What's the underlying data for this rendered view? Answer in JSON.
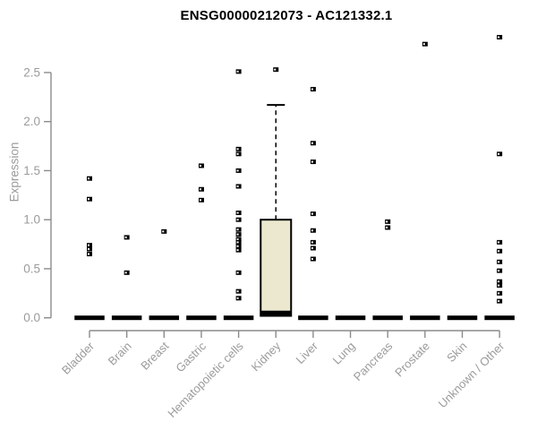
{
  "chart_data": {
    "type": "boxplot",
    "title": "ENSG00000212073 - AC121332.1",
    "xlabel": "",
    "ylabel": "Expression",
    "ylim": [
      0,
      2.9
    ],
    "grid": false,
    "legend": "none",
    "yticks": {
      "values": [
        0,
        0.5,
        1.0,
        1.5,
        2.0,
        2.5
      ],
      "labels": [
        "0.0",
        "0.5",
        "1.0",
        "1.5",
        "2.0",
        "2.5"
      ]
    },
    "categories": [
      "Bladder",
      "Brain",
      "Breast",
      "Gastric",
      "Hematopoietic cells",
      "Kidney",
      "Liver",
      "Lung",
      "Pancreas",
      "Prostate",
      "Skin",
      "Unknown / Other"
    ],
    "groups": [
      {
        "label": "Bladder",
        "median": 0,
        "points": [
          1.42,
          1.21,
          0.74,
          0.7,
          0.65
        ]
      },
      {
        "label": "Brain",
        "median": 0,
        "points": [
          0.82,
          0.46
        ]
      },
      {
        "label": "Breast",
        "median": 0,
        "points": [
          0.88
        ]
      },
      {
        "label": "Gastric",
        "median": 0,
        "points": [
          1.55,
          1.31,
          1.2
        ]
      },
      {
        "label": "Hematopoietic cells",
        "median": 0,
        "points": [
          2.51,
          1.72,
          1.67,
          1.5,
          1.34,
          1.07,
          1.0,
          0.9,
          0.85,
          0.8,
          0.77,
          0.73,
          0.69,
          0.46,
          0.27,
          0.2
        ]
      },
      {
        "label": "Kidney",
        "median": 0.05,
        "box": {
          "q1": 0.02,
          "q3": 1.0,
          "whisker_high": 2.17
        },
        "points": [
          2.53
        ]
      },
      {
        "label": "Liver",
        "median": 0,
        "points": [
          2.33,
          1.78,
          1.59,
          1.06,
          0.89,
          0.77,
          0.71,
          0.6
        ]
      },
      {
        "label": "Lung",
        "median": 0,
        "points": []
      },
      {
        "label": "Pancreas",
        "median": 0,
        "points": [
          0.98,
          0.92
        ]
      },
      {
        "label": "Prostate",
        "median": 0,
        "points": [
          2.79
        ]
      },
      {
        "label": "Skin",
        "median": 0,
        "points": []
      },
      {
        "label": "Unknown / Other",
        "median": 0,
        "points": [
          2.86,
          1.67,
          0.77,
          0.68,
          0.57,
          0.48,
          0.37,
          0.33,
          0.25,
          0.17
        ]
      }
    ],
    "colors": {
      "box_fill": "#ECE8CF",
      "box_border": "#000000",
      "median": "#000000",
      "point": "#000000",
      "point_center": "#ffffff",
      "axis": "#8b8b8b",
      "tick_label": "#9b9b9b",
      "title": "#000000"
    }
  }
}
